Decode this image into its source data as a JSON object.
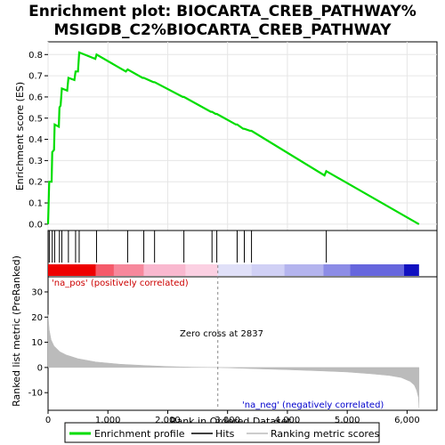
{
  "chart_data": {
    "type": "line",
    "title": "Enrichment plot: BIOCARTA_CREB_PATHWAY%\nMSIGDB_C2%BIOCARTA_CREB_PATHWAY",
    "title_lines": [
      "Enrichment plot: BIOCARTA_CREB_PATHWAY%",
      "MSIGDB_C2%BIOCARTA_CREB_PATHWAY"
    ],
    "xlabel": "Rank in Ordered Dataset",
    "xlim": [
      0,
      6500
    ],
    "xticks": [
      0,
      1000,
      2000,
      3000,
      4000,
      5000,
      6000
    ],
    "xtick_labels": [
      "0",
      "1,000",
      "2,000",
      "3,000",
      "4,000",
      "5,000",
      "6,000"
    ],
    "top_panel": {
      "ylabel": "Enrichment score (ES)",
      "ylim": [
        -0.03,
        0.86
      ],
      "yticks": [
        0.0,
        0.1,
        0.2,
        0.3,
        0.4,
        0.5,
        0.6,
        0.7,
        0.8
      ],
      "ytick_labels": [
        "0.0",
        "0.1",
        "0.2",
        "0.3",
        "0.4",
        "0.5",
        "0.6",
        "0.7",
        "0.8"
      ],
      "series": [
        {
          "name": "Enrichment profile",
          "color": "#00dd00",
          "x": [
            0,
            20,
            30,
            60,
            70,
            100,
            110,
            180,
            190,
            210,
            230,
            320,
            340,
            440,
            460,
            500,
            520,
            790,
            810,
            1300,
            1330,
            1580,
            1600,
            1760,
            1780,
            2250,
            2270,
            2720,
            2740,
            2800,
            2820,
            3140,
            3160,
            3260,
            3280,
            3380,
            3400,
            4620,
            4650,
            6200
          ],
          "y": [
            0.0,
            0.2,
            0.2,
            0.2,
            0.34,
            0.35,
            0.47,
            0.46,
            0.55,
            0.56,
            0.64,
            0.63,
            0.69,
            0.68,
            0.72,
            0.72,
            0.81,
            0.78,
            0.8,
            0.72,
            0.73,
            0.69,
            0.69,
            0.67,
            0.67,
            0.6,
            0.6,
            0.53,
            0.53,
            0.52,
            0.52,
            0.47,
            0.47,
            0.45,
            0.45,
            0.44,
            0.44,
            0.23,
            0.25,
            0.0
          ]
        }
      ]
    },
    "hits": [
      20,
      70,
      110,
      190,
      230,
      340,
      460,
      520,
      810,
      1330,
      1600,
      1780,
      2270,
      2740,
      2820,
      3160,
      3280,
      3400,
      4650
    ],
    "hits_legend": "Hits",
    "ranking_bar": {
      "segments": [
        {
          "from": 0,
          "to": 800,
          "color": "#ee0000"
        },
        {
          "from": 800,
          "to": 1100,
          "color": "#f55a6a"
        },
        {
          "from": 1100,
          "to": 1600,
          "color": "#f7889c"
        },
        {
          "from": 1600,
          "to": 2300,
          "color": "#f9b8cf"
        },
        {
          "from": 2300,
          "to": 2837,
          "color": "#fbd0e2"
        },
        {
          "from": 2837,
          "to": 3400,
          "color": "#e0e0f8"
        },
        {
          "from": 3400,
          "to": 3950,
          "color": "#d0d0f5"
        },
        {
          "from": 3950,
          "to": 4600,
          "color": "#b4b4ee"
        },
        {
          "from": 4600,
          "to": 5050,
          "color": "#8c8ce6"
        },
        {
          "from": 5050,
          "to": 5950,
          "color": "#6666dd"
        },
        {
          "from": 5950,
          "to": 6200,
          "color": "#1010c0"
        }
      ]
    },
    "bottom_panel": {
      "ylabel": "Ranked list metric (PreRanked)",
      "ylim": [
        -17,
        36
      ],
      "yticks": [
        -10,
        0,
        10,
        20,
        30
      ],
      "ytick_labels": [
        "-10",
        "0",
        "10",
        "20",
        "30"
      ],
      "series": [
        {
          "name": "Ranking metric scores",
          "color": "#bbbbbb",
          "x": [
            0,
            20,
            50,
            100,
            200,
            300,
            500,
            800,
            1200,
            1600,
            2000,
            2400,
            2837,
            3200,
            3600,
            4000,
            4500,
            5000,
            5400,
            5700,
            5900,
            6050,
            6120,
            6160,
            6190,
            6200
          ],
          "y": [
            21,
            15,
            11,
            8.5,
            6.2,
            5,
            3.5,
            2.2,
            1.3,
            0.8,
            0.4,
            0.15,
            0,
            -0.3,
            -0.6,
            -0.9,
            -1.3,
            -1.8,
            -2.5,
            -3.2,
            -4.0,
            -5.5,
            -7.0,
            -9.0,
            -12.0,
            -16.0
          ]
        }
      ],
      "zero_cross": 2837
    },
    "annotations": {
      "pos_label": "'na_pos' (positively correlated)",
      "neg_label": "'na_neg' (negatively correlated)",
      "zero_cross_label": "Zero cross at 2837",
      "pos_color": "#cc0000",
      "neg_color": "#0000cc"
    },
    "legend": {
      "items": [
        {
          "label": "Enrichment profile",
          "color": "#00dd00"
        },
        {
          "label": "Hits",
          "color": "#000000"
        },
        {
          "label": "Ranking metric scores",
          "color": "#bbbbbb"
        }
      ]
    }
  }
}
